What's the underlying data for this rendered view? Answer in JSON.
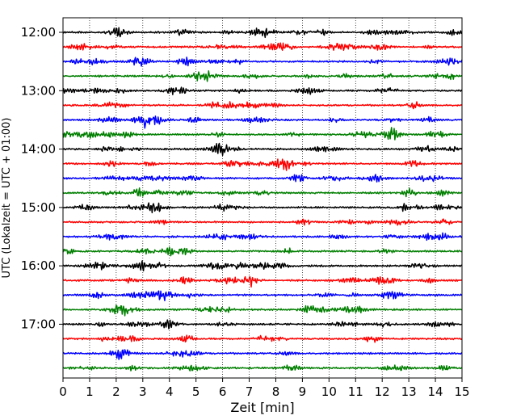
{
  "chart_data": {
    "type": "line",
    "subtype": "seismogram-helicorder",
    "title": "",
    "xlabel": "Zeit  [min]",
    "ylabel": "UTC (Lokalzeit = UTC + 01:00)",
    "xlim": [
      0,
      15
    ],
    "x_ticks": [
      0,
      1,
      2,
      3,
      4,
      5,
      6,
      7,
      8,
      9,
      10,
      11,
      12,
      13,
      14,
      15
    ],
    "x_tick_labels": [
      "0",
      "1",
      "2",
      "3",
      "4",
      "5",
      "6",
      "7",
      "8",
      "9",
      "10",
      "11",
      "12",
      "13",
      "14",
      "15"
    ],
    "grid": "vertical dotted at each minute",
    "trace_start": "12:00",
    "trace_end": "17:45",
    "trace_interval_minutes": 15,
    "trace_count": 24,
    "y_tick_labels": [
      "12:00",
      "13:00",
      "14:00",
      "15:00",
      "16:00",
      "17:00"
    ],
    "trace_color_cycle": [
      "#000000",
      "#ff0000",
      "#0000ff",
      "#007f00"
    ],
    "legend": "none"
  }
}
